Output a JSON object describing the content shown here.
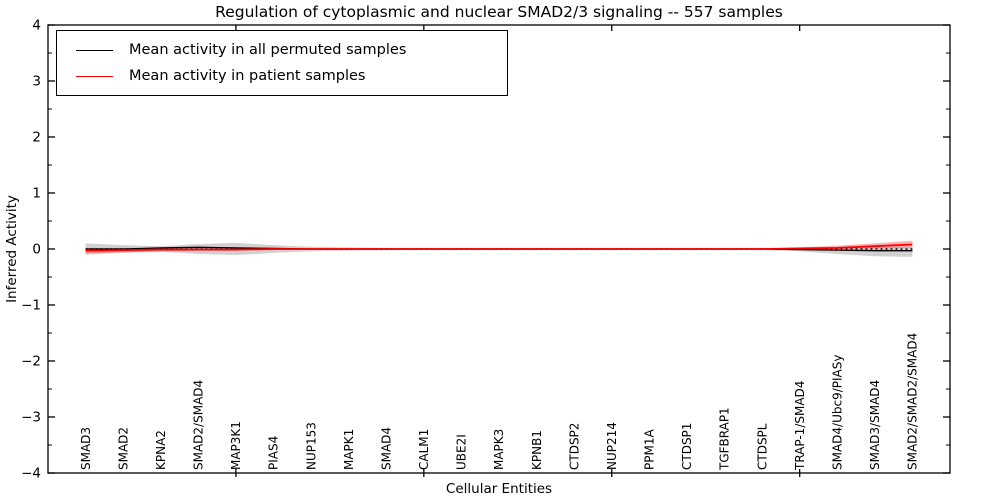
{
  "title": "Regulation of cytoplasmic and nuclear SMAD2/3 signaling -- 557 samples",
  "legend": {
    "entries": [
      {
        "label": "Mean activity in all permuted samples",
        "color": "#000000"
      },
      {
        "label": "Mean activity in patient samples",
        "color": "#ff0000"
      }
    ]
  },
  "chart_data": {
    "type": "line",
    "title": "Regulation of cytoplasmic and nuclear SMAD2/3 signaling -- 557 samples",
    "xlabel": "Cellular Entities",
    "ylabel": "Inferred Activity",
    "xlim": [
      -1,
      23
    ],
    "ylim": [
      -4,
      4
    ],
    "y_major_ticks": [
      -4,
      -3,
      -2,
      -1,
      0,
      1,
      2,
      3,
      4
    ],
    "y_tick_labels": [
      "−4",
      "−3",
      "−2",
      "−1",
      "0",
      "1",
      "2",
      "3",
      "4"
    ],
    "y_minor_step": 0.5,
    "grid": false,
    "legend_position": "upper left",
    "categories": [
      "SMAD3",
      "SMAD2",
      "KPNA2",
      "SMAD2/SMAD4",
      "MAP3K1",
      "PIAS4",
      "NUP153",
      "MAPK1",
      "SMAD4",
      "CALM1",
      "UBE2I",
      "MAPK3",
      "KPNB1",
      "CTDSP2",
      "NUP214",
      "PPM1A",
      "CTDSP1",
      "TGFBRAP1",
      "CTDSPL",
      "TRAP-1/SMAD4",
      "SMAD4/Ubc9/PIASy",
      "SMAD3/SMAD4",
      "SMAD2/SMAD2/SMAD4"
    ],
    "x_major_tick_indices": [
      4,
      9,
      14,
      19
    ],
    "series": [
      {
        "name": "Mean activity in all permuted samples",
        "color": "#000000",
        "line_style": "solid",
        "values": [
          0.0,
          0.0,
          0.02,
          0.03,
          0.02,
          0.01,
          0.0,
          0.0,
          0.0,
          0.0,
          0.0,
          0.0,
          0.0,
          0.0,
          0.0,
          0.0,
          0.0,
          0.0,
          0.0,
          -0.01,
          -0.02,
          -0.03,
          -0.03
        ]
      },
      {
        "name": "Mean activity in patient samples",
        "color": "#ff0000",
        "line_style": "solid",
        "values": [
          -0.03,
          -0.02,
          -0.01,
          -0.01,
          -0.01,
          0.0,
          0.0,
          0.0,
          0.0,
          0.0,
          0.0,
          0.0,
          0.0,
          0.0,
          0.0,
          0.0,
          0.0,
          0.0,
          0.0,
          0.01,
          0.02,
          0.05,
          0.08
        ]
      }
    ],
    "bands": [
      {
        "name": "permuted-samples-band",
        "color": "#999999",
        "opacity": 0.45,
        "upper": [
          0.1,
          0.07,
          0.05,
          0.09,
          0.11,
          0.07,
          0.04,
          0.03,
          0.02,
          0.02,
          0.02,
          0.02,
          0.02,
          0.02,
          0.02,
          0.02,
          0.02,
          0.02,
          0.02,
          0.02,
          0.03,
          0.04,
          0.03
        ],
        "lower": [
          -0.1,
          -0.07,
          -0.05,
          -0.09,
          -0.11,
          -0.07,
          -0.04,
          -0.03,
          -0.02,
          -0.02,
          -0.02,
          -0.02,
          -0.02,
          -0.02,
          -0.02,
          -0.02,
          -0.02,
          -0.02,
          -0.02,
          -0.04,
          -0.09,
          -0.13,
          -0.14
        ]
      },
      {
        "name": "patient-samples-band",
        "color": "#ff2222",
        "opacity": 0.35,
        "upper": [
          0.02,
          0.02,
          0.01,
          0.01,
          0.01,
          0.01,
          0.01,
          0.01,
          0.01,
          0.01,
          0.01,
          0.01,
          0.01,
          0.01,
          0.01,
          0.01,
          0.01,
          0.01,
          0.01,
          0.03,
          0.06,
          0.1,
          0.15
        ],
        "lower": [
          -0.08,
          -0.06,
          -0.04,
          -0.03,
          -0.03,
          -0.02,
          -0.01,
          -0.01,
          -0.01,
          -0.01,
          -0.01,
          -0.01,
          -0.01,
          -0.01,
          -0.01,
          -0.01,
          -0.01,
          -0.01,
          -0.01,
          -0.01,
          0.0,
          0.01,
          0.02
        ]
      }
    ],
    "zero_line": {
      "y": 0,
      "color": "#000000",
      "style": "dotted"
    }
  }
}
